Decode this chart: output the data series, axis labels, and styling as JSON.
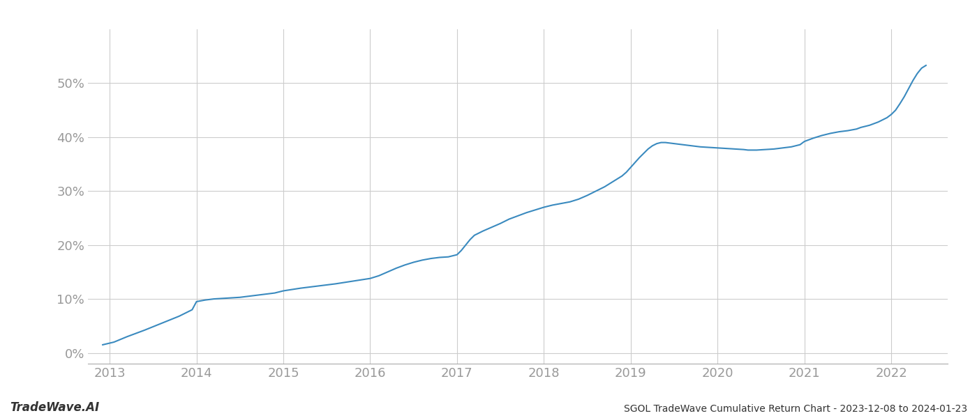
{
  "title": "SGOL TradeWave Cumulative Return Chart - 2023-12-08 to 2024-01-23",
  "watermark": "TradeWave.AI",
  "line_color": "#3a8abf",
  "background_color": "#ffffff",
  "grid_color": "#cccccc",
  "x_years": [
    2013,
    2014,
    2015,
    2016,
    2017,
    2018,
    2019,
    2020,
    2021,
    2022
  ],
  "data_points": [
    [
      2012.92,
      0.015
    ],
    [
      2013.05,
      0.02
    ],
    [
      2013.2,
      0.03
    ],
    [
      2013.4,
      0.042
    ],
    [
      2013.6,
      0.055
    ],
    [
      2013.8,
      0.068
    ],
    [
      2013.95,
      0.08
    ],
    [
      2014.0,
      0.095
    ],
    [
      2014.1,
      0.098
    ],
    [
      2014.2,
      0.1
    ],
    [
      2014.3,
      0.101
    ],
    [
      2014.5,
      0.103
    ],
    [
      2014.7,
      0.107
    ],
    [
      2014.9,
      0.111
    ],
    [
      2015.0,
      0.115
    ],
    [
      2015.2,
      0.12
    ],
    [
      2015.4,
      0.124
    ],
    [
      2015.6,
      0.128
    ],
    [
      2015.8,
      0.133
    ],
    [
      2016.0,
      0.138
    ],
    [
      2016.1,
      0.143
    ],
    [
      2016.2,
      0.15
    ],
    [
      2016.3,
      0.157
    ],
    [
      2016.4,
      0.163
    ],
    [
      2016.5,
      0.168
    ],
    [
      2016.6,
      0.172
    ],
    [
      2016.7,
      0.175
    ],
    [
      2016.8,
      0.177
    ],
    [
      2016.9,
      0.178
    ],
    [
      2017.0,
      0.182
    ],
    [
      2017.05,
      0.19
    ],
    [
      2017.1,
      0.2
    ],
    [
      2017.15,
      0.21
    ],
    [
      2017.2,
      0.218
    ],
    [
      2017.3,
      0.226
    ],
    [
      2017.4,
      0.233
    ],
    [
      2017.5,
      0.24
    ],
    [
      2017.6,
      0.248
    ],
    [
      2017.7,
      0.254
    ],
    [
      2017.8,
      0.26
    ],
    [
      2017.9,
      0.265
    ],
    [
      2018.0,
      0.27
    ],
    [
      2018.1,
      0.274
    ],
    [
      2018.2,
      0.277
    ],
    [
      2018.3,
      0.28
    ],
    [
      2018.4,
      0.285
    ],
    [
      2018.5,
      0.292
    ],
    [
      2018.6,
      0.3
    ],
    [
      2018.7,
      0.308
    ],
    [
      2018.8,
      0.318
    ],
    [
      2018.9,
      0.328
    ],
    [
      2018.95,
      0.335
    ],
    [
      2019.0,
      0.344
    ],
    [
      2019.05,
      0.353
    ],
    [
      2019.1,
      0.362
    ],
    [
      2019.15,
      0.37
    ],
    [
      2019.2,
      0.378
    ],
    [
      2019.25,
      0.384
    ],
    [
      2019.3,
      0.388
    ],
    [
      2019.35,
      0.39
    ],
    [
      2019.4,
      0.39
    ],
    [
      2019.5,
      0.388
    ],
    [
      2019.6,
      0.386
    ],
    [
      2019.7,
      0.384
    ],
    [
      2019.8,
      0.382
    ],
    [
      2019.9,
      0.381
    ],
    [
      2020.0,
      0.38
    ],
    [
      2020.1,
      0.379
    ],
    [
      2020.2,
      0.378
    ],
    [
      2020.3,
      0.377
    ],
    [
      2020.35,
      0.376
    ],
    [
      2020.45,
      0.376
    ],
    [
      2020.55,
      0.377
    ],
    [
      2020.65,
      0.378
    ],
    [
      2020.75,
      0.38
    ],
    [
      2020.85,
      0.382
    ],
    [
      2020.95,
      0.386
    ],
    [
      2021.0,
      0.392
    ],
    [
      2021.1,
      0.398
    ],
    [
      2021.2,
      0.403
    ],
    [
      2021.3,
      0.407
    ],
    [
      2021.4,
      0.41
    ],
    [
      2021.5,
      0.412
    ],
    [
      2021.6,
      0.415
    ],
    [
      2021.65,
      0.418
    ],
    [
      2021.7,
      0.42
    ],
    [
      2021.75,
      0.422
    ],
    [
      2021.8,
      0.425
    ],
    [
      2021.85,
      0.428
    ],
    [
      2021.9,
      0.432
    ],
    [
      2021.95,
      0.436
    ],
    [
      2022.0,
      0.442
    ],
    [
      2022.05,
      0.45
    ],
    [
      2022.1,
      0.462
    ],
    [
      2022.15,
      0.475
    ],
    [
      2022.2,
      0.49
    ],
    [
      2022.25,
      0.505
    ],
    [
      2022.3,
      0.518
    ],
    [
      2022.35,
      0.528
    ],
    [
      2022.4,
      0.533
    ]
  ],
  "ylim": [
    -0.02,
    0.6
  ],
  "xlim": [
    2012.75,
    2022.65
  ],
  "yticks": [
    0.0,
    0.1,
    0.2,
    0.3,
    0.4,
    0.5
  ],
  "title_fontsize": 10,
  "watermark_fontsize": 12,
  "tick_color": "#999999",
  "spine_color": "#aaaaaa"
}
